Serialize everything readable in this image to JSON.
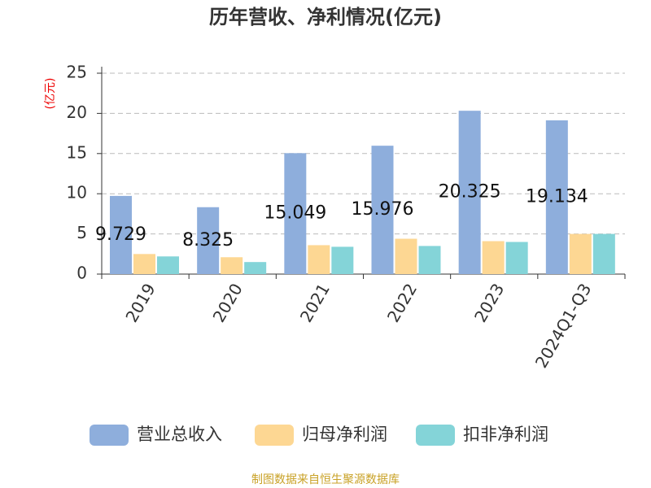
{
  "chart_data": {
    "type": "bar",
    "title": "历年营收、净利情况(亿元)",
    "y_label": "(亿元)",
    "source": "制图数据来自恒生聚源数据库",
    "categories": [
      "2019",
      "2020",
      "2021",
      "2022",
      "2023",
      "2024Q1-Q3"
    ],
    "series": [
      {
        "name": "营业总收入",
        "color": "#8eaedc",
        "values": [
          9.729,
          8.325,
          15.049,
          15.976,
          20.325,
          19.134
        ]
      },
      {
        "name": "归母净利润",
        "color": "#fdd793",
        "values": [
          2.5,
          2.1,
          3.6,
          4.4,
          4.1,
          5.0
        ]
      },
      {
        "name": "扣非净利润",
        "color": "#84d4d8",
        "values": [
          2.2,
          1.5,
          3.4,
          3.5,
          4.0,
          5.0
        ]
      }
    ],
    "ylim": [
      0,
      25
    ],
    "yticks": [
      0,
      5,
      10,
      15,
      20,
      25
    ],
    "grid": true
  }
}
